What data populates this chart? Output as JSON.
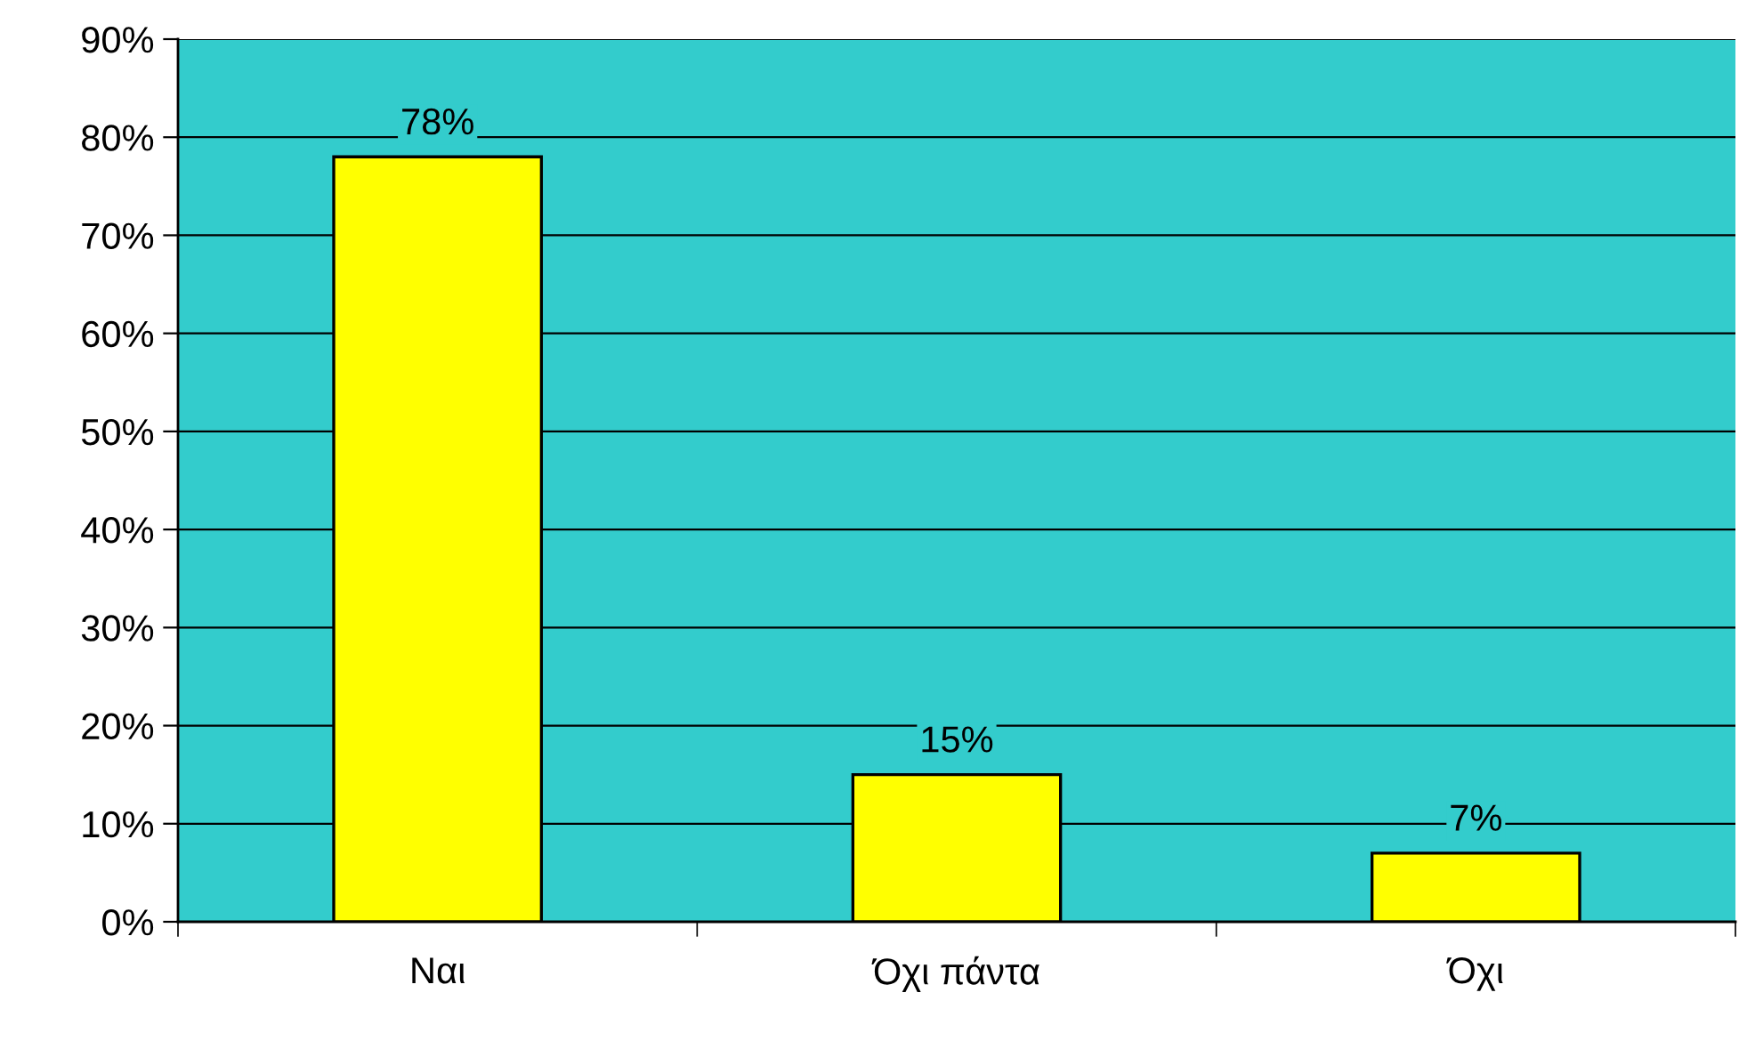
{
  "chart_data": {
    "type": "bar",
    "categories": [
      "Ναι",
      "Όχι πάντα",
      "Όχι"
    ],
    "values": [
      78,
      15,
      7
    ],
    "value_labels": [
      "78%",
      "15%",
      "7%"
    ],
    "color": "#ffff00",
    "ylim": [
      0,
      90
    ],
    "yticks": [
      {
        "value": 0,
        "label": "0%"
      },
      {
        "value": 10,
        "label": "10%"
      },
      {
        "value": 20,
        "label": "20%"
      },
      {
        "value": 30,
        "label": "30%"
      },
      {
        "value": 40,
        "label": "40%"
      },
      {
        "value": 50,
        "label": "50%"
      },
      {
        "value": 60,
        "label": "60%"
      },
      {
        "value": 70,
        "label": "70%"
      },
      {
        "value": 80,
        "label": "80%"
      },
      {
        "value": 90,
        "label": "90%"
      }
    ],
    "grid": "y"
  }
}
